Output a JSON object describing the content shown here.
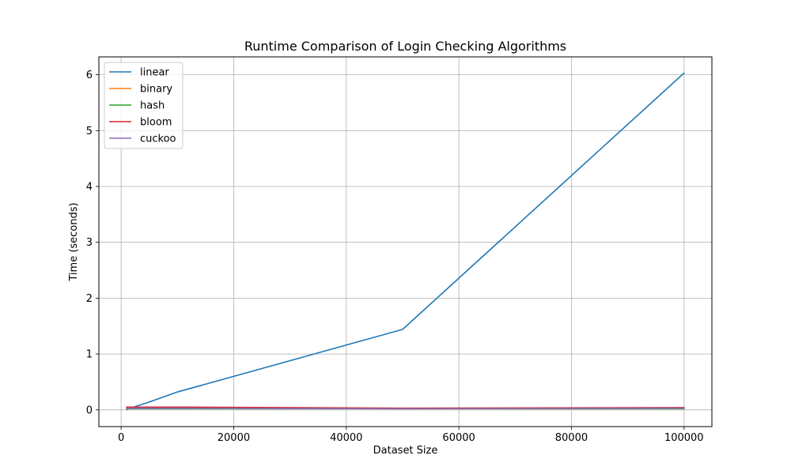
{
  "chart_data": {
    "type": "line",
    "title": "Runtime Comparison of Login Checking Algorithms",
    "xlabel": "Dataset Size",
    "ylabel": "Time (seconds)",
    "xlim": [
      -3950,
      104950
    ],
    "ylim": [
      -0.3,
      6.32
    ],
    "xticks": [
      0,
      20000,
      40000,
      60000,
      80000,
      100000
    ],
    "yticks": [
      0,
      1,
      2,
      3,
      4,
      5,
      6
    ],
    "grid": true,
    "legend_position": "top-left",
    "x": [
      1000,
      5000,
      10000,
      50000,
      100000
    ],
    "series": [
      {
        "name": "linear",
        "color": "#1f77b4",
        "values": [
          0.01,
          0.14,
          0.32,
          1.44,
          6.03
        ]
      },
      {
        "name": "binary",
        "color": "#ff7f0e",
        "values": [
          0.03,
          0.03,
          0.03,
          0.02,
          0.02
        ]
      },
      {
        "name": "hash",
        "color": "#2ca02c",
        "values": [
          0.02,
          0.02,
          0.02,
          0.02,
          0.02
        ]
      },
      {
        "name": "bloom",
        "color": "#d62728",
        "values": [
          0.05,
          0.05,
          0.05,
          0.03,
          0.04
        ]
      },
      {
        "name": "cuckoo",
        "color": "#9467bd",
        "values": [
          0.03,
          0.03,
          0.03,
          0.02,
          0.03
        ]
      }
    ]
  }
}
